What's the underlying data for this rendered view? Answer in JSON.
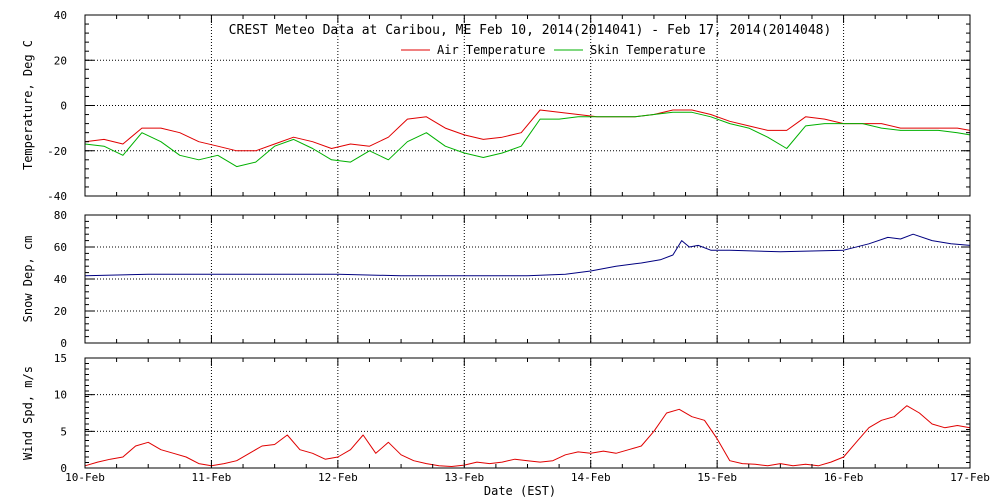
{
  "chart_data": {
    "title": "CREST Meteo Data at Caribou, ME   Feb 10, 2014(2014041) - Feb 17, 2014(2014048)",
    "xlabel": "Date (EST)",
    "x_ticks": [
      "10-Feb",
      "11-Feb",
      "12-Feb",
      "13-Feb",
      "14-Feb",
      "15-Feb",
      "16-Feb",
      "17-Feb"
    ],
    "x_range_days": [
      0,
      7
    ],
    "panels": [
      {
        "type": "line",
        "ylabel": "Temperature, Deg C",
        "ylim": [
          -40,
          40
        ],
        "yticks": [
          -40,
          -20,
          0,
          20,
          40
        ],
        "legend": "top-center",
        "series": [
          {
            "name": "Air Temperature",
            "color": "#e00000",
            "x": [
              0,
              0.15,
              0.3,
              0.45,
              0.6,
              0.75,
              0.9,
              1.05,
              1.2,
              1.35,
              1.5,
              1.65,
              1.8,
              1.95,
              2.1,
              2.25,
              2.4,
              2.55,
              2.7,
              2.85,
              3.0,
              3.15,
              3.3,
              3.45,
              3.6,
              3.75,
              3.9,
              4.05,
              4.2,
              4.35,
              4.5,
              4.65,
              4.8,
              4.95,
              5.1,
              5.25,
              5.4,
              5.55,
              5.7,
              5.85,
              6.0,
              6.15,
              6.3,
              6.45,
              6.6,
              6.75,
              6.9,
              7.0
            ],
            "y": [
              -16,
              -15,
              -17,
              -10,
              -10,
              -12,
              -16,
              -18,
              -20,
              -20,
              -17,
              -14,
              -16,
              -19,
              -17,
              -18,
              -14,
              -6,
              -5,
              -10,
              -13,
              -15,
              -14,
              -12,
              -2,
              -3,
              -4,
              -5,
              -5,
              -5,
              -4,
              -2,
              -2,
              -4,
              -7,
              -9,
              -11,
              -11,
              -5,
              -6,
              -8,
              -8,
              -8,
              -10,
              -10,
              -10,
              -10,
              -11
            ]
          },
          {
            "name": "Skin Temperature",
            "color": "#00b000",
            "x": [
              0,
              0.15,
              0.3,
              0.45,
              0.6,
              0.75,
              0.9,
              1.05,
              1.2,
              1.35,
              1.5,
              1.65,
              1.8,
              1.95,
              2.1,
              2.25,
              2.4,
              2.55,
              2.7,
              2.85,
              3.0,
              3.15,
              3.3,
              3.45,
              3.6,
              3.75,
              3.9,
              4.05,
              4.2,
              4.35,
              4.5,
              4.65,
              4.8,
              4.95,
              5.1,
              5.25,
              5.4,
              5.55,
              5.7,
              5.85,
              6.0,
              6.15,
              6.3,
              6.45,
              6.6,
              6.75,
              6.9,
              7.0
            ],
            "y": [
              -17,
              -18,
              -22,
              -12,
              -16,
              -22,
              -24,
              -22,
              -27,
              -25,
              -18,
              -15,
              -19,
              -24,
              -25,
              -20,
              -24,
              -16,
              -12,
              -18,
              -21,
              -23,
              -21,
              -18,
              -6,
              -6,
              -5,
              -5,
              -5,
              -5,
              -4,
              -3,
              -3,
              -5,
              -8,
              -10,
              -14,
              -19,
              -9,
              -8,
              -8,
              -8,
              -10,
              -11,
              -11,
              -11,
              -12,
              -13
            ]
          }
        ]
      },
      {
        "type": "line",
        "ylabel": "Snow Dep, cm",
        "ylim": [
          0,
          80
        ],
        "yticks": [
          0,
          20,
          40,
          60,
          80
        ],
        "series": [
          {
            "name": "",
            "color": "#000080",
            "x": [
              0,
              0.5,
              1.0,
              1.5,
              2.0,
              2.5,
              3.0,
              3.5,
              3.8,
              4.0,
              4.2,
              4.4,
              4.55,
              4.65,
              4.72,
              4.78,
              4.85,
              4.95,
              5.1,
              5.5,
              6.0,
              6.2,
              6.35,
              6.45,
              6.55,
              6.7,
              6.85,
              7.0
            ],
            "y": [
              42,
              43,
              43,
              43,
              43,
              42,
              42,
              42,
              43,
              45,
              48,
              50,
              52,
              55,
              64,
              60,
              61,
              58,
              58,
              57,
              58,
              62,
              66,
              65,
              68,
              64,
              62,
              61
            ]
          }
        ]
      },
      {
        "type": "line",
        "ylabel": "Wind Spd, m/s",
        "ylim": [
          0,
          15
        ],
        "yticks": [
          0,
          5,
          10,
          15
        ],
        "series": [
          {
            "name": "",
            "color": "#e00000",
            "x": [
              0,
              0.1,
              0.2,
              0.3,
              0.4,
              0.5,
              0.6,
              0.7,
              0.8,
              0.9,
              1.0,
              1.1,
              1.2,
              1.3,
              1.4,
              1.5,
              1.6,
              1.7,
              1.8,
              1.9,
              2.0,
              2.1,
              2.2,
              2.3,
              2.4,
              2.5,
              2.6,
              2.7,
              2.8,
              2.9,
              3.0,
              3.1,
              3.2,
              3.3,
              3.4,
              3.5,
              3.6,
              3.7,
              3.8,
              3.9,
              4.0,
              4.1,
              4.2,
              4.3,
              4.4,
              4.5,
              4.6,
              4.7,
              4.8,
              4.9,
              5.0,
              5.1,
              5.2,
              5.3,
              5.4,
              5.5,
              5.6,
              5.7,
              5.8,
              5.9,
              6.0,
              6.1,
              6.2,
              6.3,
              6.4,
              6.5,
              6.6,
              6.7,
              6.8,
              6.9,
              7.0
            ],
            "y": [
              0.3,
              0.8,
              1.2,
              1.5,
              3.0,
              3.5,
              2.5,
              2.0,
              1.5,
              0.6,
              0.3,
              0.6,
              1.0,
              2.0,
              3.0,
              3.2,
              4.5,
              2.5,
              2.0,
              1.2,
              1.5,
              2.5,
              4.5,
              2.0,
              3.5,
              1.8,
              1.0,
              0.6,
              0.3,
              0.2,
              0.4,
              0.8,
              0.6,
              0.8,
              1.2,
              1.0,
              0.8,
              1.0,
              1.8,
              2.2,
              2.0,
              2.3,
              2.0,
              2.5,
              3.0,
              5.0,
              7.5,
              8.0,
              7.0,
              6.5,
              4.0,
              1.0,
              0.6,
              0.5,
              0.3,
              0.6,
              0.3,
              0.5,
              0.3,
              0.8,
              1.5,
              3.5,
              5.5,
              6.5,
              7.0,
              8.5,
              7.5,
              6.0,
              5.5,
              5.8,
              5.5
            ]
          }
        ]
      }
    ]
  }
}
